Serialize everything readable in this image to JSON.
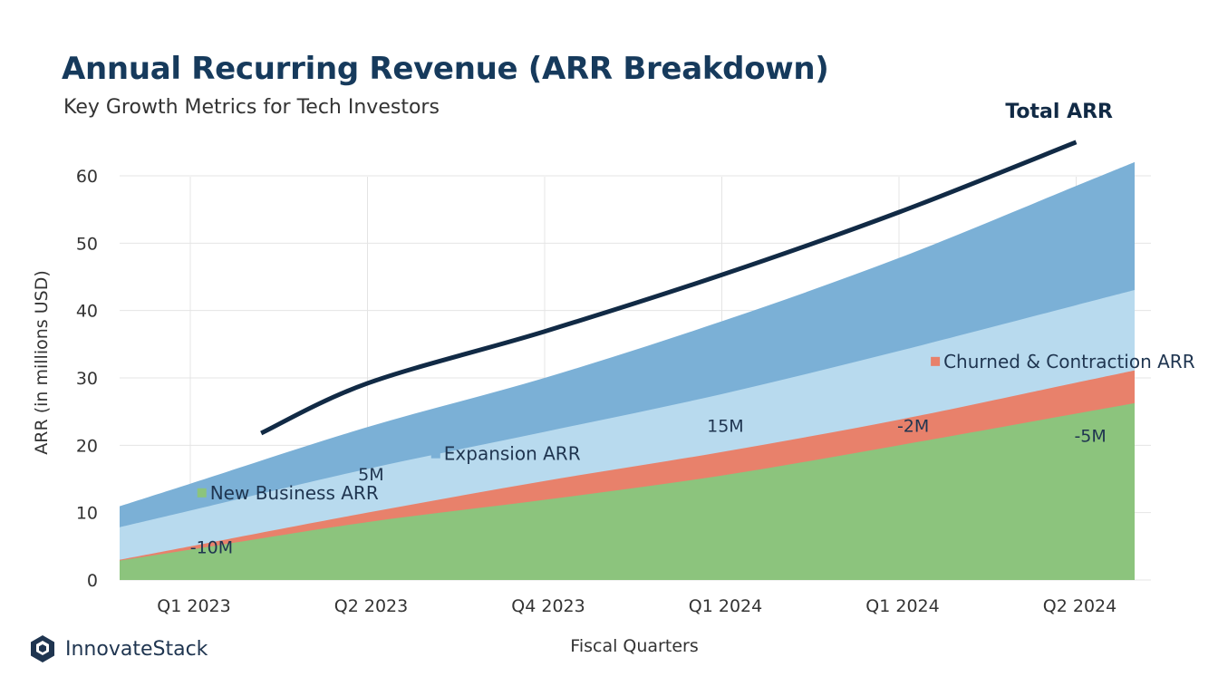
{
  "header": {
    "title": "Annual Recurring Revenue (ARR Breakdown)",
    "subtitle": "Key Growth Metrics for Tech Investors"
  },
  "brand": {
    "name": "InnovateStack",
    "icon": "hexagon-logo-icon"
  },
  "colors": {
    "new_business": "#8cc47d",
    "churn": "#e8816b",
    "expansion_light": "#b8daee",
    "expansion_dark": "#7bb0d6",
    "total": "#112a45",
    "grid": "#e4e4e4",
    "text": "#333333"
  },
  "chart_data": {
    "type": "area",
    "xlabel": "Fiscal Quarters",
    "ylabel": "ARR (in millions USD)",
    "categories": [
      "Q1 2023",
      "Q2 2023",
      "Q4 2023",
      "Q1 2024",
      "Q1 2024",
      "Q2 2024"
    ],
    "ylim": [
      0,
      62
    ],
    "yticks": [
      0,
      10,
      20,
      30,
      40,
      50,
      60
    ],
    "grid": true,
    "legend": "inline labels",
    "stack_tops": [
      {
        "key": "new_business",
        "label": "New Business ARR",
        "values": [
          4.5,
          8.6,
          11.9,
          15.5,
          20.0,
          24.7
        ]
      },
      {
        "key": "churn",
        "label": "Churned & Contraction ARR",
        "values": [
          5.0,
          10.0,
          14.7,
          19.0,
          23.8,
          29.3
        ]
      },
      {
        "key": "expansion_light",
        "label": "Expansion ARR",
        "values": [
          10.3,
          16.5,
          22.0,
          27.6,
          34.0,
          40.8
        ]
      },
      {
        "key": "expansion_dark",
        "label": "",
        "values": [
          14.3,
          22.7,
          30.0,
          38.4,
          47.8,
          58.5
        ]
      }
    ],
    "total_series": {
      "name": "Total ARR",
      "x": [
        0.4,
        1,
        2,
        3,
        4,
        5
      ],
      "values": [
        21.8,
        29.2,
        36.9,
        45.3,
        54.6,
        65.0
      ]
    },
    "annotations": [
      {
        "text": "-10M",
        "x": 0.12,
        "y": 4.0
      },
      {
        "text": "5M",
        "x": 1.02,
        "y": 14.8
      },
      {
        "text": "15M",
        "x": 3.02,
        "y": 22.0
      },
      {
        "text": "-2M",
        "x": 4.08,
        "y": 22.0
      },
      {
        "text": "-5M",
        "x": 5.08,
        "y": 20.5
      }
    ],
    "labels": [
      {
        "series": "new_business",
        "text": "New Business ARR",
        "x": 0.06,
        "y": 12.0
      },
      {
        "series": "expansion_dark",
        "text": "Expansion ARR",
        "x": 1.38,
        "y": 17.8
      },
      {
        "series": "churn",
        "text": "Churned & Contraction ARR",
        "x": 4.2,
        "y": 31.5
      }
    ]
  }
}
